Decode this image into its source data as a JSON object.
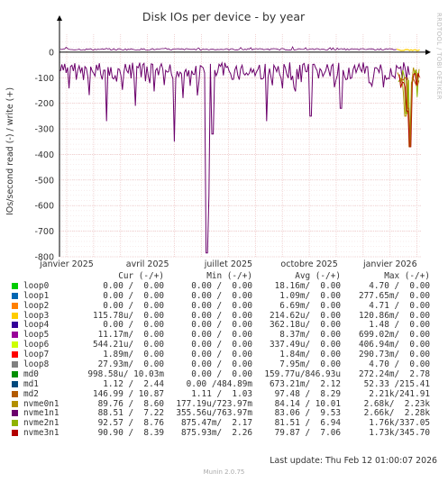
{
  "chart_data": {
    "type": "line",
    "title": "Disk IOs per device - by year",
    "ylabel": "IOs/second read (-) / write (+)",
    "ylim": [
      -800,
      70
    ],
    "yticks": [
      0,
      -100,
      -200,
      -300,
      -400,
      -500,
      -600,
      -700,
      -800
    ],
    "xticks": [
      "janvier 2025",
      "avril 2025",
      "juillet 2025",
      "octobre 2025",
      "janvier 2026"
    ],
    "grid": true,
    "legend_position": "bottom",
    "columns": [
      "Cur (-/+)",
      "Min (-/+)",
      "Avg (-/+)",
      "Max (-/+)"
    ],
    "series": [
      {
        "name": "loop0",
        "color": "#00cc00",
        "cur": "0.00 /  0.00",
        "min": "0.00 /  0.00",
        "avg": "18.16m/  0.00",
        "max": "4.70 /  0.00"
      },
      {
        "name": "loop1",
        "color": "#0066b3",
        "cur": "0.00 /  0.00",
        "min": "0.00 /  0.00",
        "avg": "1.09m/  0.00",
        "max": "277.65m/  0.00"
      },
      {
        "name": "loop2",
        "color": "#ff8000",
        "cur": "0.00 /  0.00",
        "min": "0.00 /  0.00",
        "avg": "6.69m/  0.00",
        "max": "4.71 /  0.00"
      },
      {
        "name": "loop3",
        "color": "#ffcc00",
        "cur": "115.78u/  0.00",
        "min": "0.00 /  0.00",
        "avg": "214.62u/  0.00",
        "max": "120.86m/  0.00"
      },
      {
        "name": "loop4",
        "color": "#330099",
        "cur": "0.00 /  0.00",
        "min": "0.00 /  0.00",
        "avg": "362.18u/  0.00",
        "max": "1.48 /  0.00"
      },
      {
        "name": "loop5",
        "color": "#990099",
        "cur": "11.17m/  0.00",
        "min": "0.00 /  0.00",
        "avg": "8.37m/  0.00",
        "max": "699.02m/  0.00"
      },
      {
        "name": "loop6",
        "color": "#ccff00",
        "cur": "544.21u/  0.00",
        "min": "0.00 /  0.00",
        "avg": "337.49u/  0.00",
        "max": "406.94m/  0.00"
      },
      {
        "name": "loop7",
        "color": "#ff0000",
        "cur": "1.89m/  0.00",
        "min": "0.00 /  0.00",
        "avg": "1.84m/  0.00",
        "max": "290.73m/  0.00"
      },
      {
        "name": "loop8",
        "color": "#808080",
        "cur": "27.93m/  0.00",
        "min": "0.00 /  0.00",
        "avg": "7.95m/  0.00",
        "max": "4.70 /  0.00"
      },
      {
        "name": "md0",
        "color": "#008f00",
        "cur": "998.58u/ 10.03m",
        "min": "0.00 /  0.00",
        "avg": "159.77u/846.93u",
        "max": "272.24m/  2.78"
      },
      {
        "name": "md1",
        "color": "#00487d",
        "cur": "1.12 /  2.44",
        "min": "0.00 /484.89m",
        "avg": "673.21m/  2.12",
        "max": "52.33 /215.41"
      },
      {
        "name": "md2",
        "color": "#b35a00",
        "cur": "146.99 / 10.87",
        "min": "1.11 /  1.03",
        "avg": "97.48 /  8.29",
        "max": "2.21k/241.91"
      },
      {
        "name": "nvme0n1",
        "color": "#b38f00",
        "cur": "89.76 /  8.60",
        "min": "177.19u/723.97m",
        "avg": "84.14 / 10.01",
        "max": "2.68k/  2.23k"
      },
      {
        "name": "nvme1n1",
        "color": "#6b006b",
        "cur": "88.51 /  7.22",
        "min": "355.56u/763.97m",
        "avg": "83.06 /  9.53",
        "max": "2.66k/  2.28k"
      },
      {
        "name": "nvme2n1",
        "color": "#8fb300",
        "cur": "92.57 /  8.76",
        "min": "875.47m/  2.17",
        "avg": "81.51 /  6.94",
        "max": "1.76k/337.05"
      },
      {
        "name": "nvme3n1",
        "color": "#b30000",
        "cur": "90.90 /  8.39",
        "min": "875.93m/  2.26",
        "avg": "79.87 /  7.06",
        "max": "1.73k/345.70"
      }
    ]
  },
  "last_update": "Last update: Thu Feb 12 01:00:07 2026",
  "footer": "Munin 2.0.75",
  "watermark": "RRDTOOL / TOBI OETIKER"
}
